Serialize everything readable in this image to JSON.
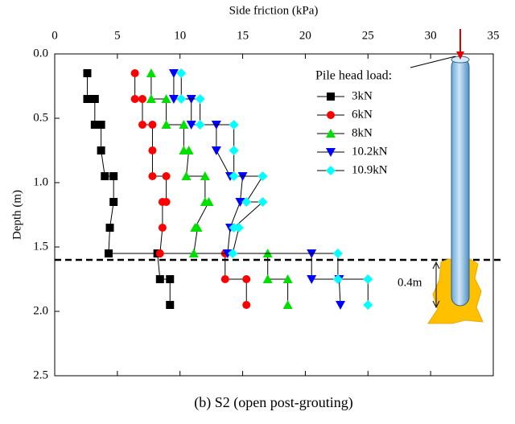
{
  "chart_data": {
    "type": "line",
    "x_label": "Side friction (kPa)",
    "y_label": "Depth (m)",
    "caption": "(b) S2 (open post-grouting)",
    "legend_title": "Pile head load:",
    "annotation": "0.4m",
    "xlim": [
      0,
      35
    ],
    "xticks": [
      0,
      5,
      10,
      15,
      20,
      25,
      30,
      35
    ],
    "ylim": [
      0,
      2.5
    ],
    "invert_y": true,
    "yticks": [
      {
        "value": 0,
        "label": "0.0"
      },
      0.5,
      {
        "value": 1,
        "label": "1.0"
      },
      1.5,
      {
        "value": 2,
        "label": "2.0"
      },
      2.5
    ],
    "hline": 1.6,
    "legend": "top-right",
    "series": [
      {
        "name": "3kN",
        "color": "#000000",
        "marker": "square",
        "x": [
          2.6,
          2.6,
          3.2,
          3.2,
          3.7,
          3.7,
          4.0,
          4.7,
          4.7,
          4.4,
          4.3,
          8.2,
          8.4,
          9.2,
          9.2
        ],
        "y": [
          0.15,
          0.35,
          0.35,
          0.55,
          0.55,
          0.75,
          0.95,
          0.95,
          1.15,
          1.35,
          1.55,
          1.55,
          1.75,
          1.75,
          1.95
        ]
      },
      {
        "name": "6kN",
        "color": "#ff0000",
        "marker": "circle",
        "x": [
          6.4,
          6.4,
          7.0,
          7.0,
          7.8,
          7.8,
          7.8,
          8.9,
          8.9,
          8.6,
          8.6,
          8.4,
          13.6,
          13.6,
          15.3,
          15.3
        ],
        "y": [
          0.15,
          0.35,
          0.35,
          0.55,
          0.55,
          0.75,
          0.95,
          0.95,
          1.15,
          1.15,
          1.35,
          1.55,
          1.55,
          1.75,
          1.75,
          1.95
        ]
      },
      {
        "name": "8kN",
        "color": "#00e000",
        "marker": "triangle-up",
        "x": [
          7.7,
          7.7,
          8.9,
          8.9,
          10.3,
          10.3,
          10.7,
          10.5,
          12.0,
          12.0,
          12.3,
          11.2,
          11.4,
          11.1,
          17.0,
          17.0,
          18.6,
          18.6
        ],
        "y": [
          0.15,
          0.35,
          0.35,
          0.55,
          0.55,
          0.75,
          0.75,
          0.95,
          0.95,
          1.15,
          1.15,
          1.35,
          1.35,
          1.55,
          1.55,
          1.75,
          1.75,
          1.95
        ]
      },
      {
        "name": "10.2kN",
        "color": "#0000ff",
        "marker": "triangle-down",
        "x": [
          9.5,
          9.5,
          10.9,
          10.9,
          12.9,
          12.9,
          14.0,
          15.0,
          14.8,
          14.0,
          13.8,
          20.5,
          20.5,
          22.7,
          22.8
        ],
        "y": [
          0.15,
          0.35,
          0.35,
          0.55,
          0.55,
          0.75,
          0.95,
          0.95,
          1.15,
          1.35,
          1.55,
          1.55,
          1.75,
          1.75,
          1.95
        ]
      },
      {
        "name": "10.9kN",
        "color": "#00ffff",
        "marker": "diamond",
        "x": [
          10.1,
          10.1,
          11.6,
          11.6,
          14.3,
          14.3,
          14.3,
          16.6,
          15.3,
          16.6,
          14.3,
          14.7,
          14.2,
          22.6,
          22.6,
          25.0,
          25.0
        ],
        "y": [
          0.15,
          0.35,
          0.35,
          0.55,
          0.55,
          0.75,
          0.95,
          0.95,
          1.15,
          1.15,
          1.35,
          1.35,
          1.55,
          1.55,
          1.75,
          1.75,
          1.95
        ]
      }
    ]
  }
}
